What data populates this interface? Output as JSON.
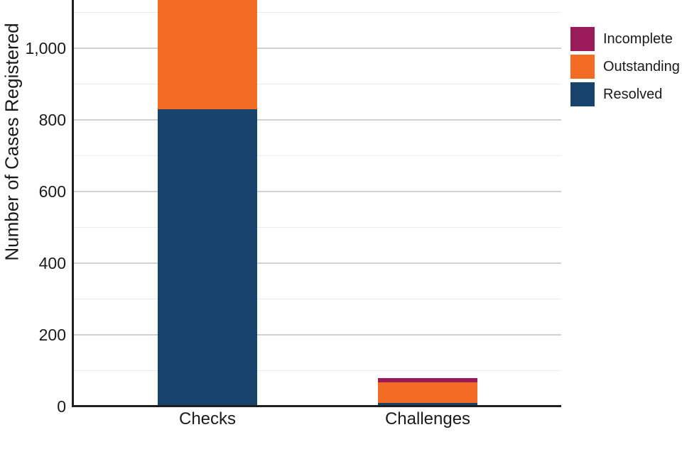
{
  "chart_data": {
    "type": "bar",
    "stacked": true,
    "title": "",
    "xlabel": "",
    "ylabel": "Number of Cases Registered",
    "categories": [
      "Checks",
      "Challenges"
    ],
    "series": [
      {
        "name": "Resolved",
        "color": "#17436D",
        "values": [
          830,
          10
        ]
      },
      {
        "name": "Outstanding",
        "color": "#F26C23",
        "values": [
          310,
          58
        ]
      },
      {
        "name": "Incomplete",
        "color": "#9A1B59",
        "values": [
          0,
          12
        ]
      }
    ],
    "stack_order_bottom_to_top": [
      "Resolved",
      "Outstanding",
      "Incomplete"
    ],
    "checks_bar_clipped_at_top": true,
    "y_axis": {
      "tick_values": [
        0,
        200,
        400,
        600,
        800,
        1000
      ],
      "tick_labels": [
        "0",
        "200",
        "400",
        "600",
        "800",
        "1,000"
      ],
      "minor_gridline_step": 100,
      "visible_max": 1140
    },
    "legend": {
      "position": "top-right",
      "entries_top_to_bottom": [
        "Incomplete",
        "Outstanding",
        "Resolved"
      ]
    },
    "colors": {
      "axis": "#1f1f1f",
      "grid_major": "#d2d2d2",
      "grid_minor": "#ececec",
      "text": "#1a1a1a",
      "background": "#ffffff"
    }
  }
}
